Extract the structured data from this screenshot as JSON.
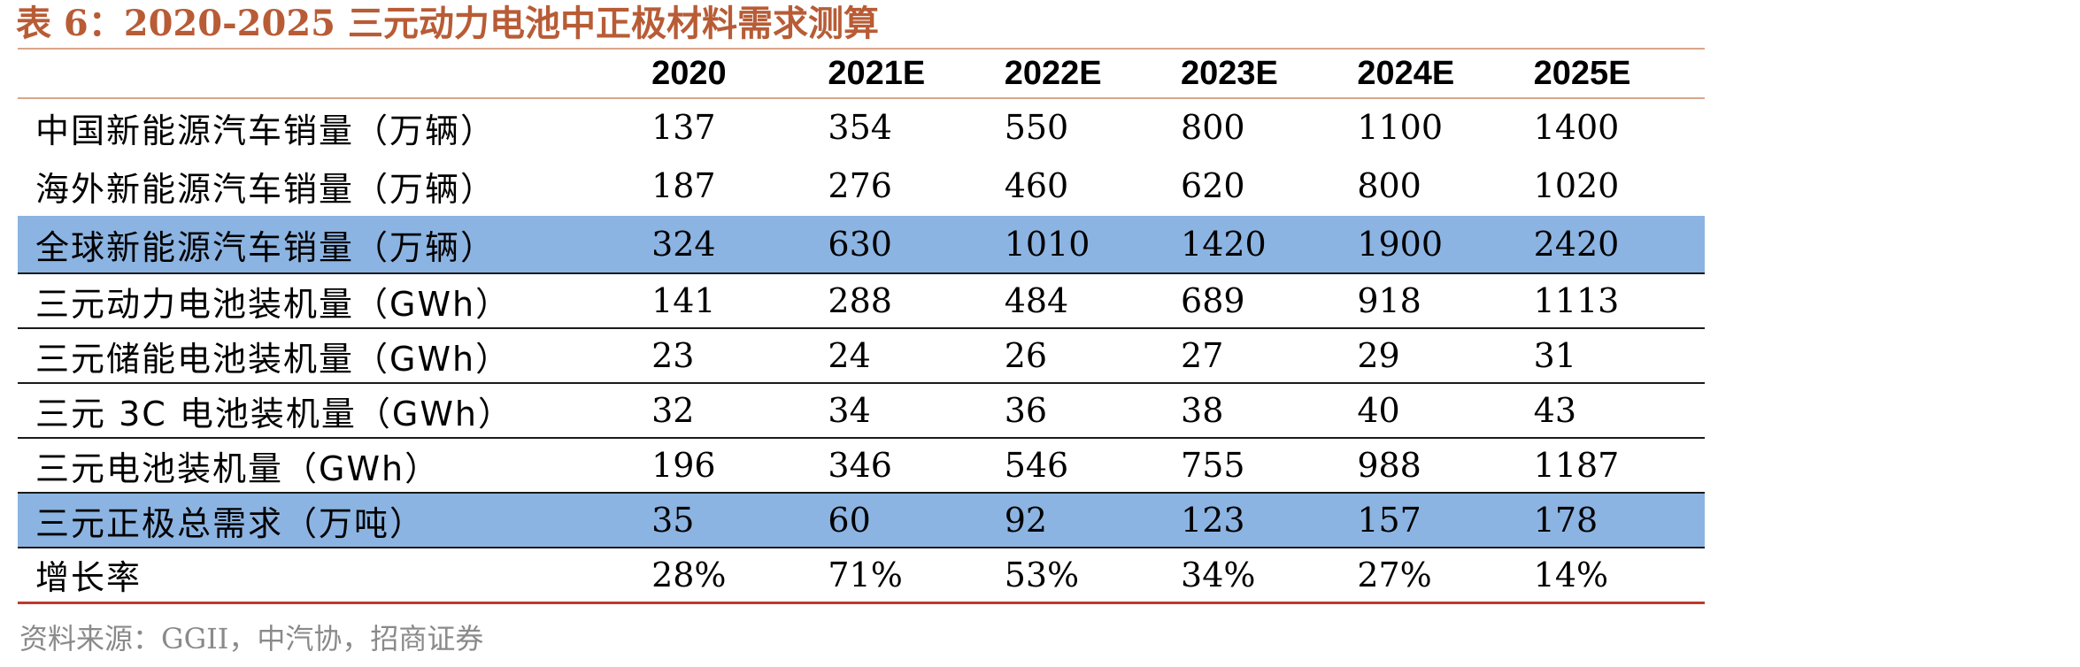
{
  "title": "表 6：2020-2025 三元动力电池中正极材料需求测算",
  "table": {
    "headers": [
      "",
      "2020",
      "2021E",
      "2022E",
      "2023E",
      "2024E",
      "2025E"
    ],
    "rows": [
      {
        "label": "中国新能源汽车销量（万辆）",
        "values": [
          "137",
          "354",
          "550",
          "800",
          "1100",
          "1400"
        ]
      },
      {
        "label": "海外新能源汽车销量（万辆）",
        "values": [
          "187",
          "276",
          "460",
          "620",
          "800",
          "1020"
        ]
      },
      {
        "label": "全球新能源汽车销量（万辆）",
        "values": [
          "324",
          "630",
          "1010",
          "1420",
          "1900",
          "2420"
        ]
      },
      {
        "label": "三元动力电池装机量（GWh）",
        "values": [
          "141",
          "288",
          "484",
          "689",
          "918",
          "1113"
        ]
      },
      {
        "label": "三元储能电池装机量（GWh）",
        "values": [
          "23",
          "24",
          "26",
          "27",
          "29",
          "31"
        ]
      },
      {
        "label": "三元 3C 电池装机量（GWh）",
        "values": [
          "32",
          "34",
          "36",
          "38",
          "40",
          "43"
        ]
      },
      {
        "label": "三元电池装机量（GWh）",
        "values": [
          "196",
          "346",
          "546",
          "755",
          "988",
          "1187"
        ]
      },
      {
        "label": "三元正极总需求（万吨）",
        "values": [
          "35",
          "60",
          "92",
          "123",
          "157",
          "178"
        ]
      },
      {
        "label": "增长率",
        "values": [
          "28%",
          "71%",
          "53%",
          "34%",
          "27%",
          "14%"
        ]
      }
    ]
  },
  "colors": {
    "title": "#b85c36",
    "highlight": "#8cb4e2",
    "header_rule": "#d9a58c",
    "bottom_rule": "#c0392b",
    "source_text": "#8a8a8a"
  },
  "source": "资料来源：GGII，中汽协，招商证券"
}
